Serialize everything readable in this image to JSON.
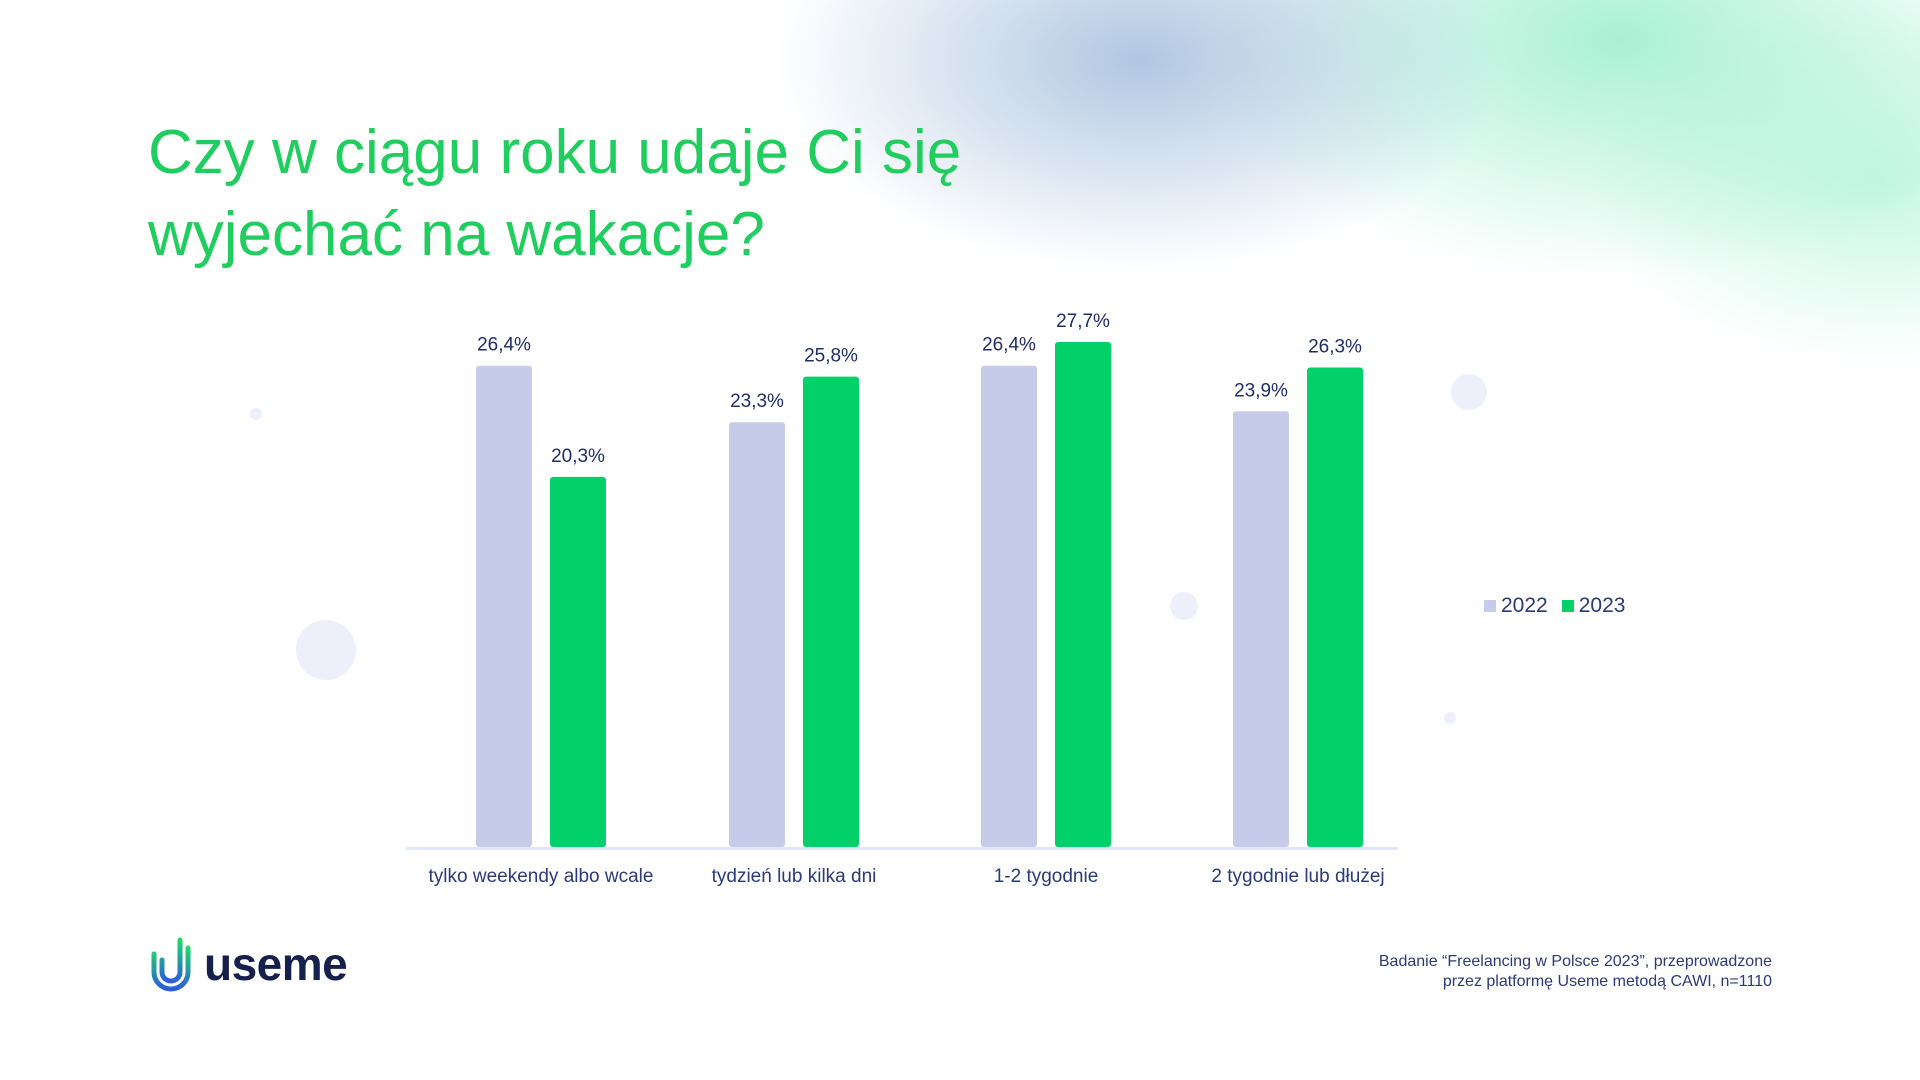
{
  "title": "Czy w ciągu roku udaje Ci się wyjechać na wakacje?",
  "colors": {
    "title": "#1fce5f",
    "series_2022": "#c7cbea",
    "series_2023": "#02d16a",
    "text": "#2a3a7a",
    "axis": "#e3e7f7"
  },
  "chart_data": {
    "type": "bar",
    "categories": [
      "tylko weekendy albo wcale",
      "tydzień lub kilka dni",
      "1-2 tygodnie",
      "2 tygodnie lub dłużej"
    ],
    "series": [
      {
        "name": "2022",
        "values": [
          26.4,
          23.3,
          26.4,
          23.9
        ],
        "labels": [
          "26,4%",
          "23,3%",
          "26,4%",
          "23,9%"
        ]
      },
      {
        "name": "2023",
        "values": [
          20.3,
          25.8,
          27.7,
          26.3
        ],
        "labels": [
          "20,3%",
          "25,8%",
          "27,7%",
          "26,3%"
        ]
      }
    ],
    "xlabel": "",
    "ylabel": "",
    "ylim": [
      0,
      27.7
    ],
    "grid": false,
    "legend_position": "right"
  },
  "legend": {
    "label_2022": "2022",
    "label_2023": "2023"
  },
  "logo": {
    "text": "useme"
  },
  "footnote": {
    "line1": "Badanie “Freelancing w Polsce 2023”, przeprowadzone",
    "line2": "przez platformę Useme metodą CAWI, n=1110"
  }
}
